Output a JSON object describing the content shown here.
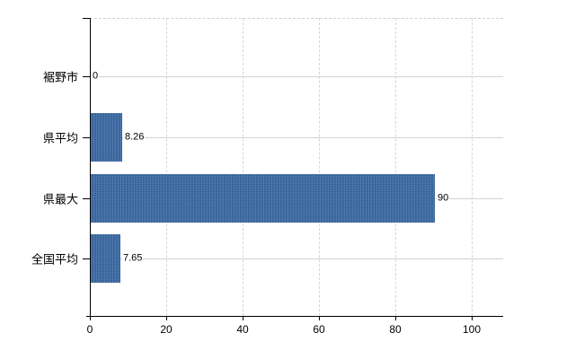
{
  "chart_data": {
    "type": "bar",
    "orientation": "horizontal",
    "title": "",
    "xlabel": "",
    "ylabel": "",
    "categories": [
      "裾野市",
      "県平均",
      "県最大",
      "全国平均"
    ],
    "values": [
      0,
      8.26,
      90,
      7.65
    ],
    "value_labels": [
      "0",
      "8.26",
      "90",
      "7.65"
    ],
    "x_ticks": [
      0,
      20,
      40,
      60,
      80,
      100
    ],
    "x_tick_labels": [
      "0",
      "20",
      "40",
      "60",
      "80",
      "100"
    ],
    "xlim": [
      0,
      108
    ],
    "grid": true,
    "legend": false,
    "bar_color": "#4070ab",
    "grid_color": "#d4d4d4",
    "axis_color": "#000000",
    "text_color": "#000000",
    "background_color": "#ffffff"
  }
}
